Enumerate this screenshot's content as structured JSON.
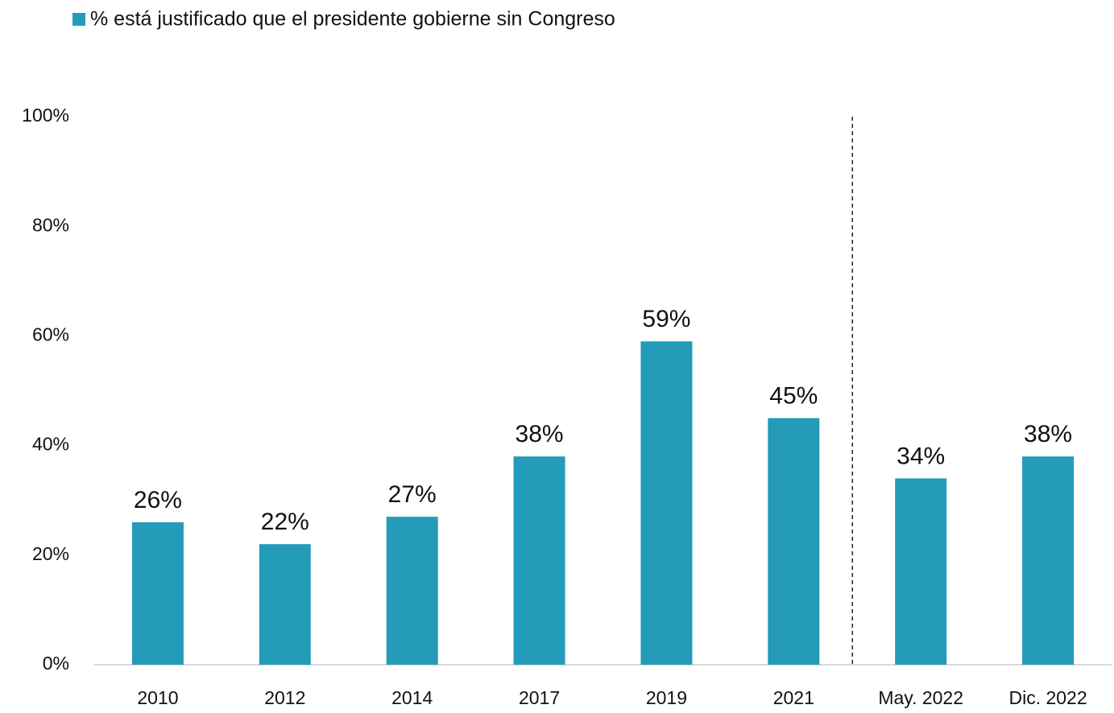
{
  "chart_data": {
    "type": "bar",
    "categories": [
      "2010",
      "2012",
      "2014",
      "2017",
      "2019",
      "2021",
      "May. 2022",
      "Dic. 2022"
    ],
    "series": [
      {
        "name": "% está justificado que el presidente gobierne sin Congreso",
        "color": "#249bb8",
        "values": [
          26,
          22,
          27,
          38,
          59,
          45,
          34,
          38
        ],
        "value_labels": [
          "26%",
          "22%",
          "27%",
          "38%",
          "59%",
          "45%",
          "34%",
          "38%"
        ]
      }
    ],
    "ylim": [
      0,
      100
    ],
    "yticks": [
      {
        "value": 0,
        "label": "0%"
      },
      {
        "value": 20,
        "label": "20%"
      },
      {
        "value": 40,
        "label": "40%"
      },
      {
        "value": 60,
        "label": "60%"
      },
      {
        "value": 80,
        "label": "80%"
      },
      {
        "value": 100,
        "label": "100%"
      }
    ],
    "grid": false
  }
}
